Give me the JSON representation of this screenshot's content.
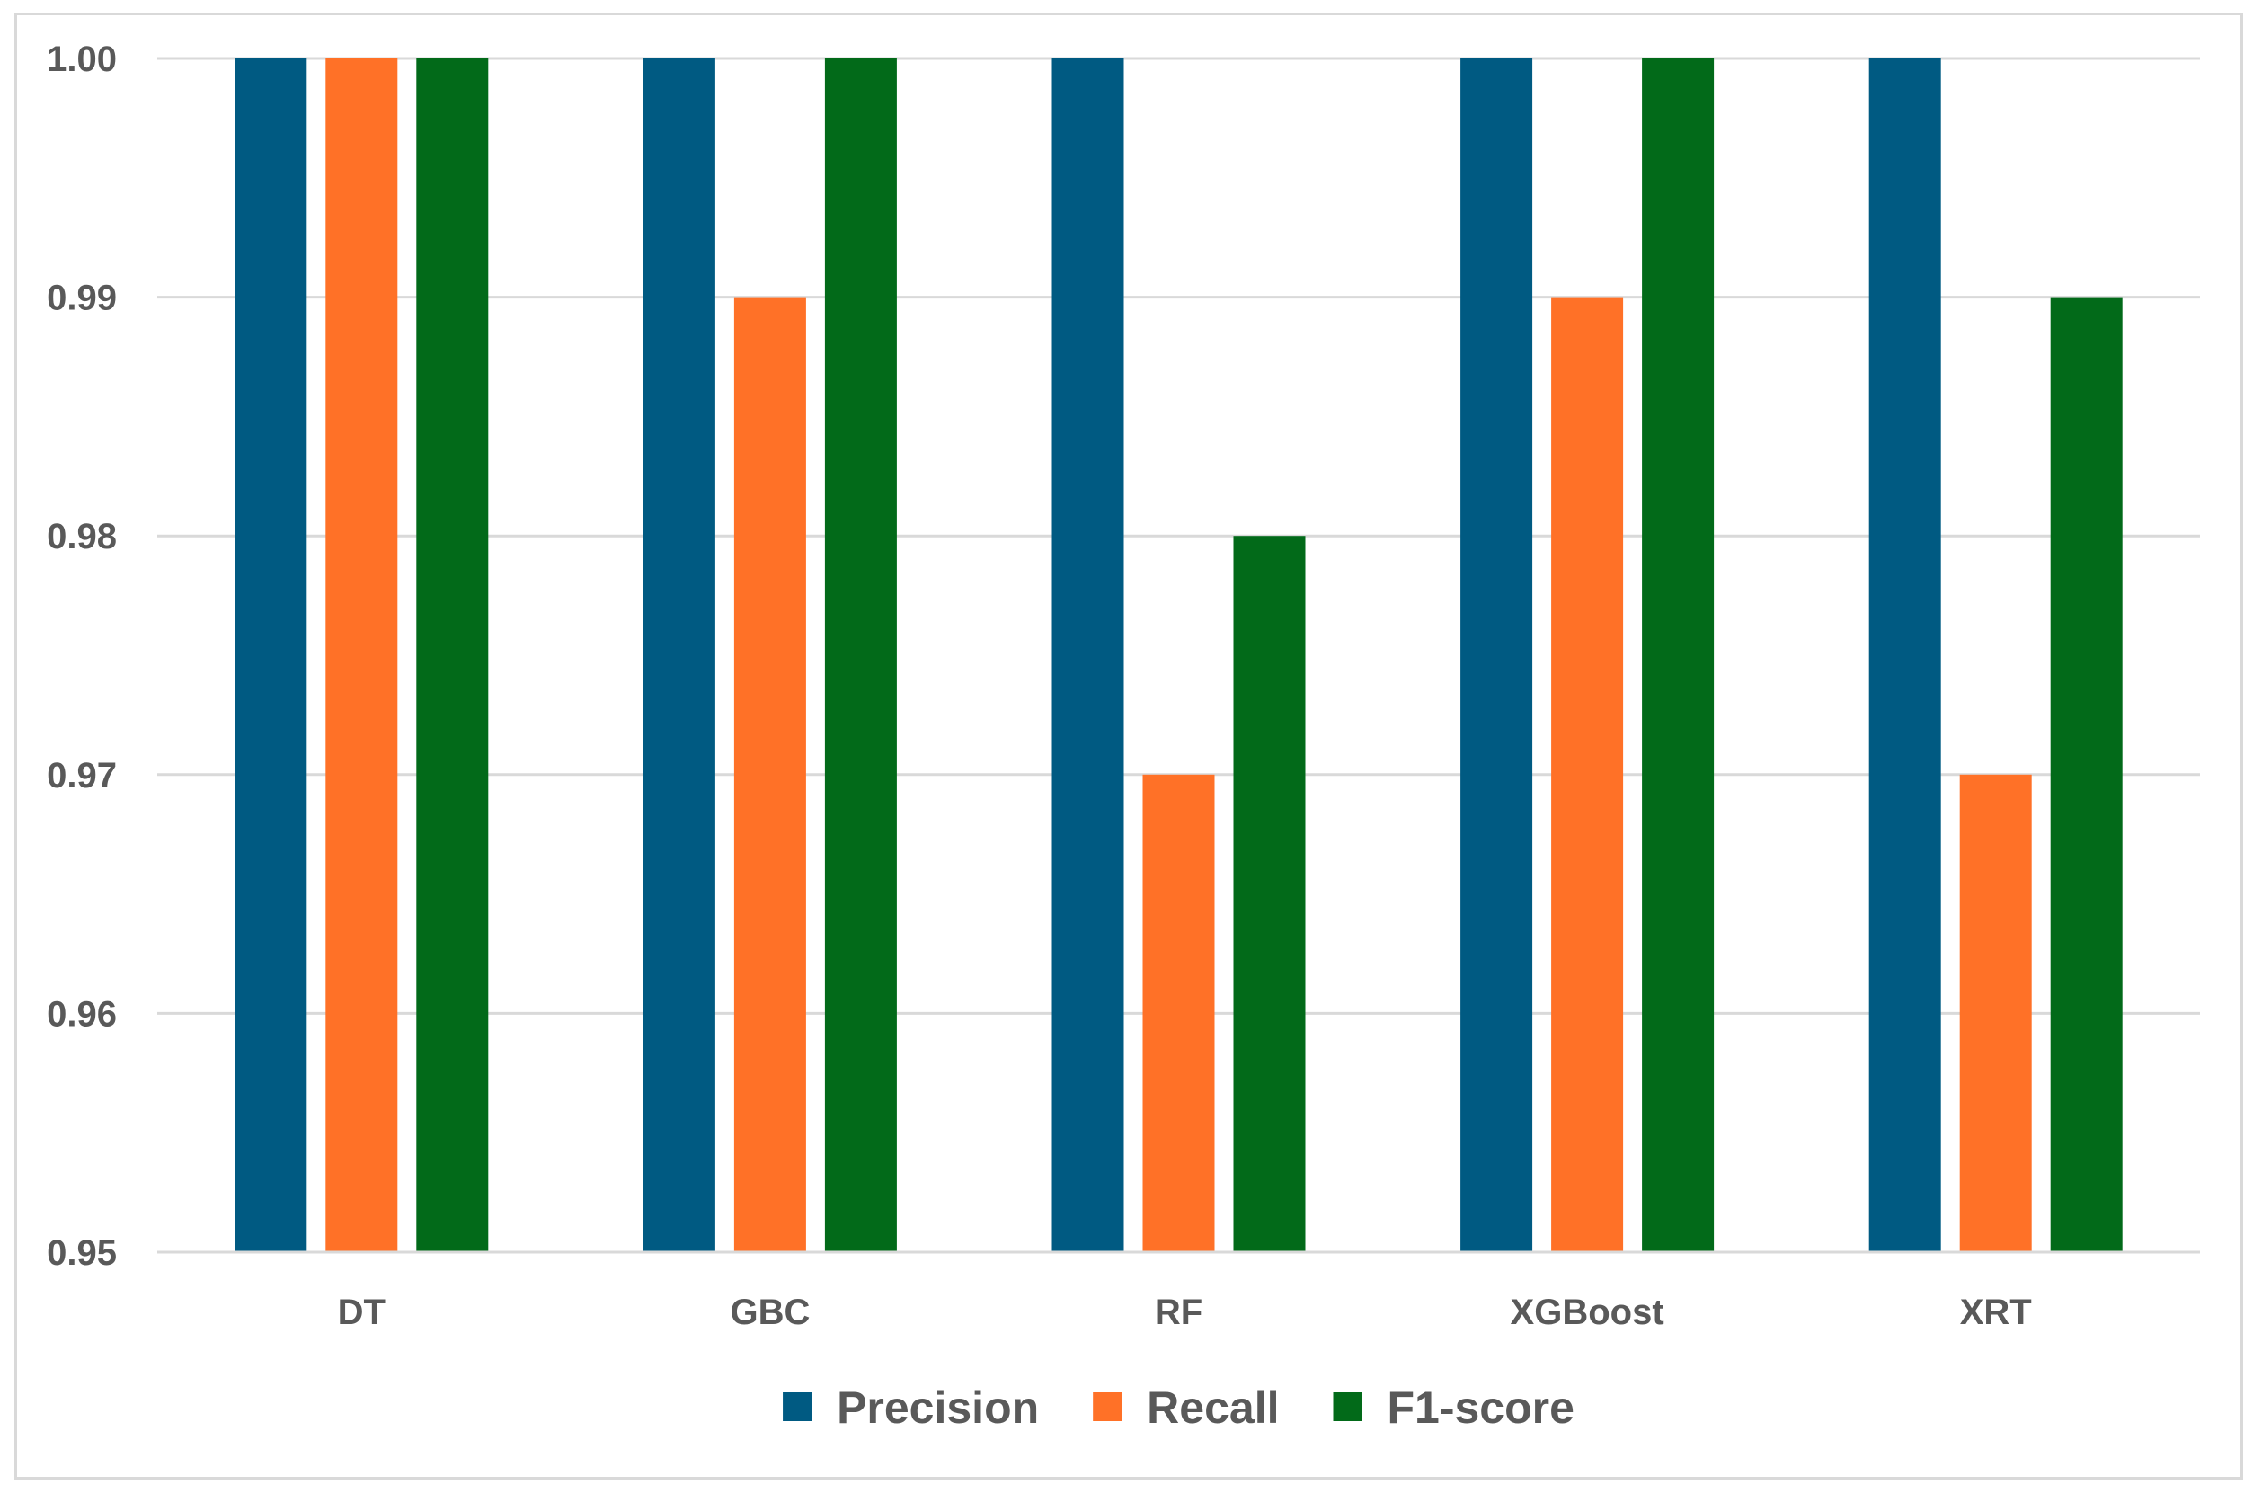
{
  "chart_data": {
    "type": "bar",
    "title": "",
    "xlabel": "",
    "ylabel": "",
    "categories": [
      "DT",
      "GBC",
      "RF",
      "XGBoost",
      "XRT"
    ],
    "series": [
      {
        "name": "Precision",
        "color": "#005A82",
        "values": [
          1.0,
          1.0,
          1.0,
          1.0,
          1.0
        ]
      },
      {
        "name": "Recall",
        "color": "#FF7127",
        "values": [
          1.0,
          0.99,
          0.97,
          0.99,
          0.97
        ]
      },
      {
        "name": "F1-score",
        "color": "#026A19",
        "values": [
          1.0,
          1.0,
          0.98,
          1.0,
          0.99
        ]
      }
    ],
    "ylim": [
      0.95,
      1.0
    ],
    "yticks": [
      "0.95",
      "0.96",
      "0.97",
      "0.98",
      "0.99",
      "1.00"
    ],
    "grid": true,
    "gridline_color": "#d9d9d9",
    "legend_position": "bottom"
  }
}
